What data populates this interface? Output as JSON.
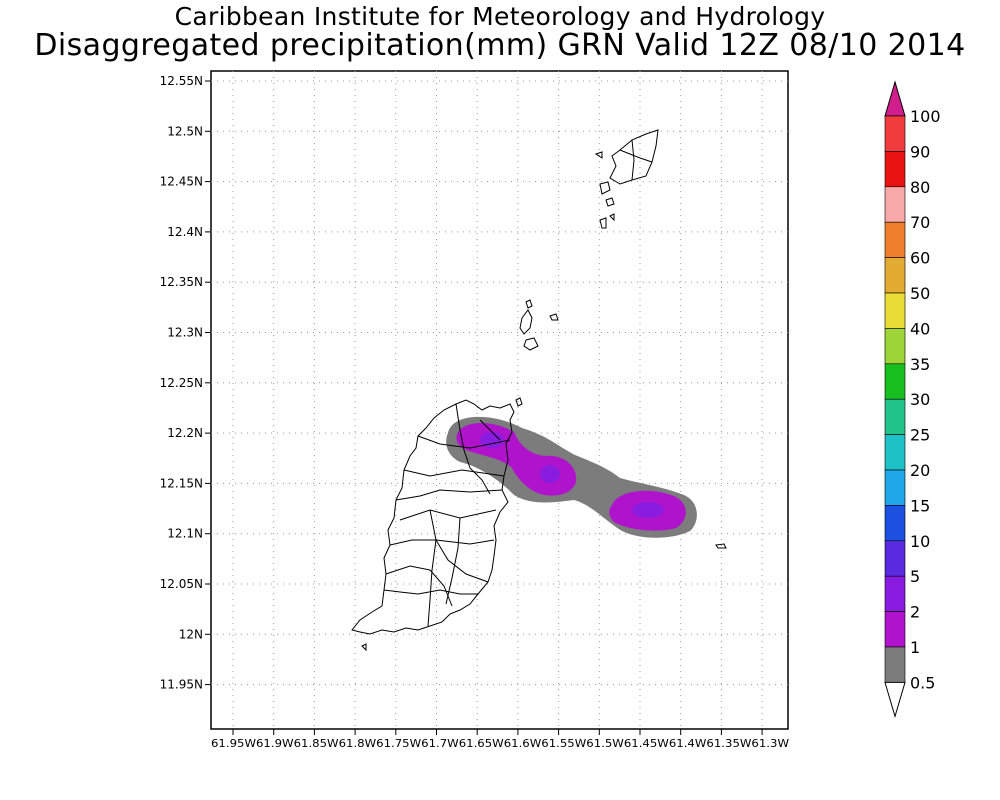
{
  "title": "Caribbean Institute for Meteorology and Hydrology",
  "subtitle": "Disaggregated precipitation(mm) GRN Valid 12Z 08/10 2014",
  "map": {
    "lat_labels": [
      "12.55N",
      "12.5N",
      "12.45N",
      "12.4N",
      "12.35N",
      "12.3N",
      "12.25N",
      "12.2N",
      "12.15N",
      "12.1N",
      "12.05N",
      "12N",
      "11.95N"
    ],
    "lon_labels": [
      "61.95W",
      "61.9W",
      "61.85W",
      "61.8W",
      "61.75W",
      "61.7W",
      "61.65W",
      "61.6W",
      "61.55W",
      "61.5W",
      "61.45W",
      "61.4W",
      "61.35W",
      "61.3W"
    ],
    "lon_axis_text": "61.95W61.9W61.85W61.8W61.75W61.7W61.65W61.6W61.55W61.5W61.45W61.4W61.35W61.3W",
    "grid": true
  },
  "colorbar": {
    "labels": [
      "100",
      "90",
      "80",
      "70",
      "60",
      "50",
      "40",
      "35",
      "30",
      "25",
      "20",
      "15",
      "10",
      "5",
      "2",
      "1",
      "0.5"
    ],
    "colors": [
      "#f03c3c",
      "#e81414",
      "#f7a8a8",
      "#ef7f2c",
      "#e3ab31",
      "#e8dc36",
      "#9dd438",
      "#17c01f",
      "#22c48c",
      "#1ec2c6",
      "#1ea7e8",
      "#1b50e0",
      "#5a2ae0",
      "#8a1ce0",
      "#b013cc",
      "#7c7c7c"
    ],
    "top_arrow_color": "#d21e8c",
    "bottom_arrow_color": "#ffffff"
  }
}
